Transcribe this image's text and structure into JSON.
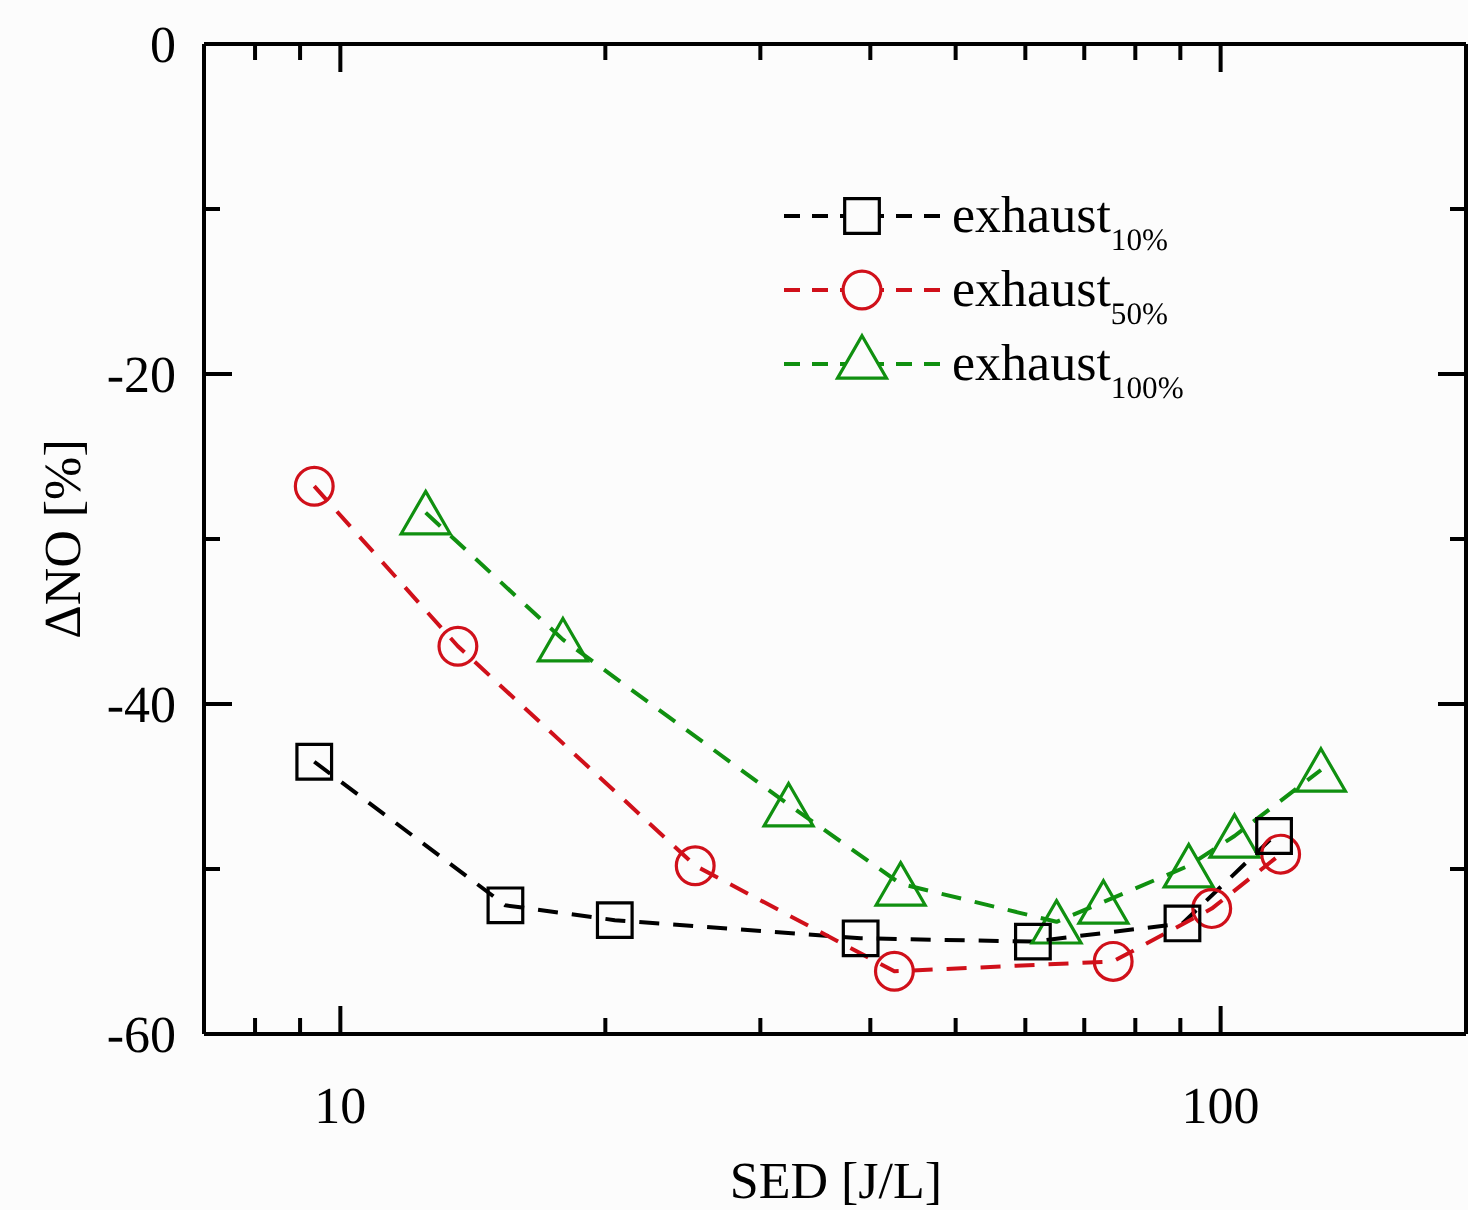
{
  "chart_data": {
    "type": "line",
    "xlabel": "SED [J/L]",
    "ylabel": "ΔNO [%]",
    "log": "x",
    "xlim": [
      7,
      190
    ],
    "ylim": [
      -60,
      0
    ],
    "xticks": [
      {
        "value": 8,
        "label": null
      },
      {
        "value": 9,
        "label": null
      },
      10,
      {
        "value": 20,
        "label": null
      },
      {
        "value": 30,
        "label": null
      },
      {
        "value": 40,
        "label": null
      },
      {
        "value": 50,
        "label": null
      },
      {
        "value": 60,
        "label": null
      },
      {
        "value": 70,
        "label": null
      },
      {
        "value": 80,
        "label": null
      },
      {
        "value": 90,
        "label": null
      },
      100
    ],
    "yticks": [
      -60,
      {
        "value": -50,
        "label": null
      },
      -40,
      {
        "value": -30,
        "label": null
      },
      -20,
      {
        "value": -10,
        "label": null
      },
      0
    ],
    "grid": false,
    "legend": "top right",
    "line_style": "dashed",
    "series": [
      {
        "name": "exhaust$_{10%}$",
        "color": "#000000",
        "marker": "square",
        "x": [
          9.34,
          15.4,
          20.5,
          39.0,
          61.2,
          90.5,
          115
        ],
        "values": [
          -43.5,
          -52.2,
          -53.1,
          -54.2,
          -54.4,
          -53.3,
          -48.0
        ]
      },
      {
        "name": "exhaust$_{50%}$",
        "color": "#d0101a",
        "marker": "circle",
        "x": [
          9.34,
          13.6,
          25.3,
          42.6,
          75.5,
          97.7,
          117
        ],
        "values": [
          -26.8,
          -36.5,
          -49.8,
          -56.2,
          -55.6,
          -52.4,
          -49.1
        ]
      },
      {
        "name": "exhaust$_{100%}$",
        "color": "#109010",
        "marker": "triangle",
        "x": [
          12.5,
          17.9,
          32.3,
          43.3,
          65.1,
          73.6,
          92.0,
          103.7,
          130
        ],
        "values": [
          -28.4,
          -36.1,
          -46.1,
          -50.9,
          -53.2,
          -52.0,
          -49.8,
          -48.0,
          -44.0
        ]
      }
    ]
  }
}
